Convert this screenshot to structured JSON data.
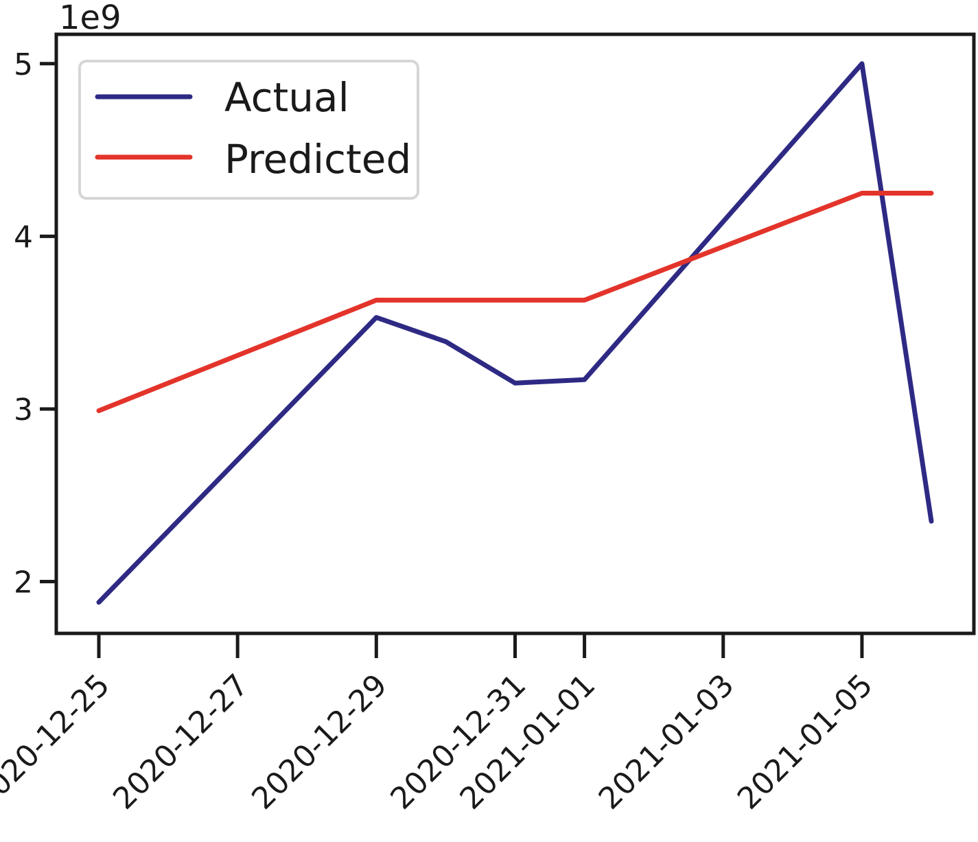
{
  "chart_data": {
    "type": "line",
    "title": "",
    "xlabel": "",
    "ylabel": "",
    "y_offset_label": "1e9",
    "x": [
      "2020-12-25",
      "2020-12-26",
      "2020-12-27",
      "2020-12-28",
      "2020-12-29",
      "2020-12-30",
      "2020-12-31",
      "2021-01-01",
      "2021-01-02",
      "2021-01-03",
      "2021-01-04",
      "2021-01-05",
      "2021-01-06"
    ],
    "x_range": [
      "2020-12-24",
      "2021-01-06"
    ],
    "x_ticks": [
      "2020-12-25",
      "2020-12-27",
      "2020-12-29",
      "2020-12-31",
      "2021-01-01",
      "2021-01-03",
      "2021-01-05"
    ],
    "x_tick_labels": [
      "2020-12-25",
      "2020-12-27",
      "2020-12-29",
      "2020-12-31",
      "2021-01-01",
      "2021-01-03",
      "2021-01-05"
    ],
    "ylim": [
      1.7,
      5.17
    ],
    "y_ticks": [
      2,
      3,
      4,
      5
    ],
    "y_tick_labels": [
      "2",
      "3",
      "4",
      "5"
    ],
    "series": [
      {
        "name": "Actual",
        "color": "#2e2a84",
        "points": [
          {
            "x": "2020-12-25",
            "y": 1.88
          },
          {
            "x": "2020-12-29",
            "y": 3.53
          },
          {
            "x": "2020-12-30",
            "y": 3.39
          },
          {
            "x": "2020-12-31",
            "y": 3.15
          },
          {
            "x": "2021-01-01",
            "y": 3.17
          },
          {
            "x": "2021-01-05",
            "y": 5.0
          },
          {
            "x": "2021-01-06",
            "y": 2.35
          }
        ]
      },
      {
        "name": "Predicted",
        "color": "#e3342b",
        "points": [
          {
            "x": "2020-12-25",
            "y": 2.99
          },
          {
            "x": "2020-12-29",
            "y": 3.63
          },
          {
            "x": "2021-01-01",
            "y": 3.63
          },
          {
            "x": "2021-01-05",
            "y": 4.25
          },
          {
            "x": "2021-01-06",
            "y": 4.25
          }
        ]
      }
    ],
    "legend_position": "top-left",
    "grid": false
  }
}
